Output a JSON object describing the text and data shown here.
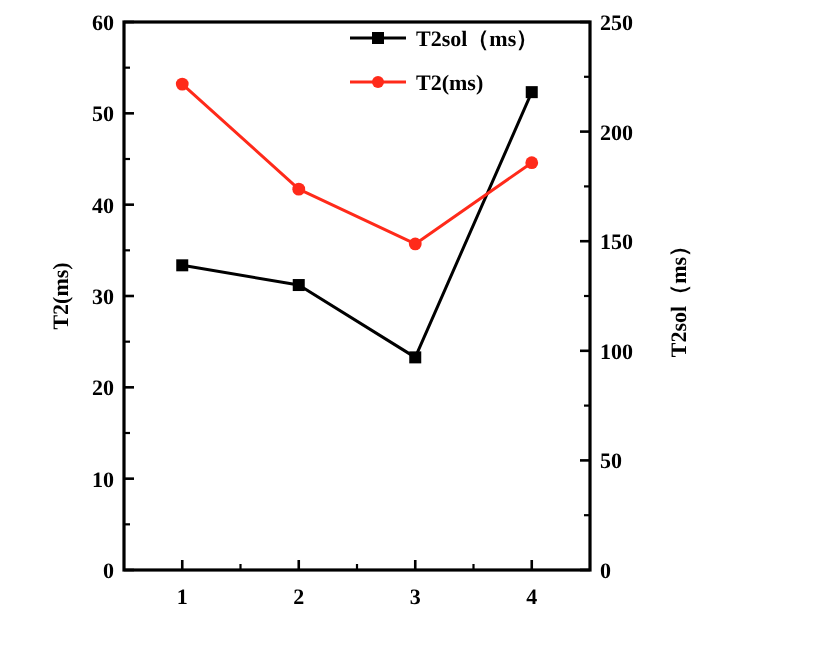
{
  "chart_data": {
    "type": "line",
    "ylabel": "T2(ms)",
    "y2label": "T2sol（ms）",
    "x": [
      1,
      2,
      3,
      4
    ],
    "xlim": [
      0.5,
      4.5
    ],
    "xticks": [
      1,
      2,
      3,
      4
    ],
    "ylim": [
      0,
      60
    ],
    "yticks": [
      0,
      10,
      20,
      30,
      40,
      50,
      60
    ],
    "y2lim": [
      0,
      250
    ],
    "y2ticks": [
      0,
      50,
      100,
      150,
      200,
      250
    ],
    "series": [
      {
        "name": "T2sol（ms）",
        "color": "#000000",
        "marker": "square",
        "axis": "y2",
        "values": [
          139,
          130,
          97,
          218
        ]
      },
      {
        "name": "T2(ms)",
        "color": "#ff2a1a",
        "marker": "circle",
        "values": [
          53.2,
          41.7,
          35.7,
          44.6
        ]
      }
    ],
    "legend": "top right",
    "grid": false,
    "line_style": "solid"
  }
}
